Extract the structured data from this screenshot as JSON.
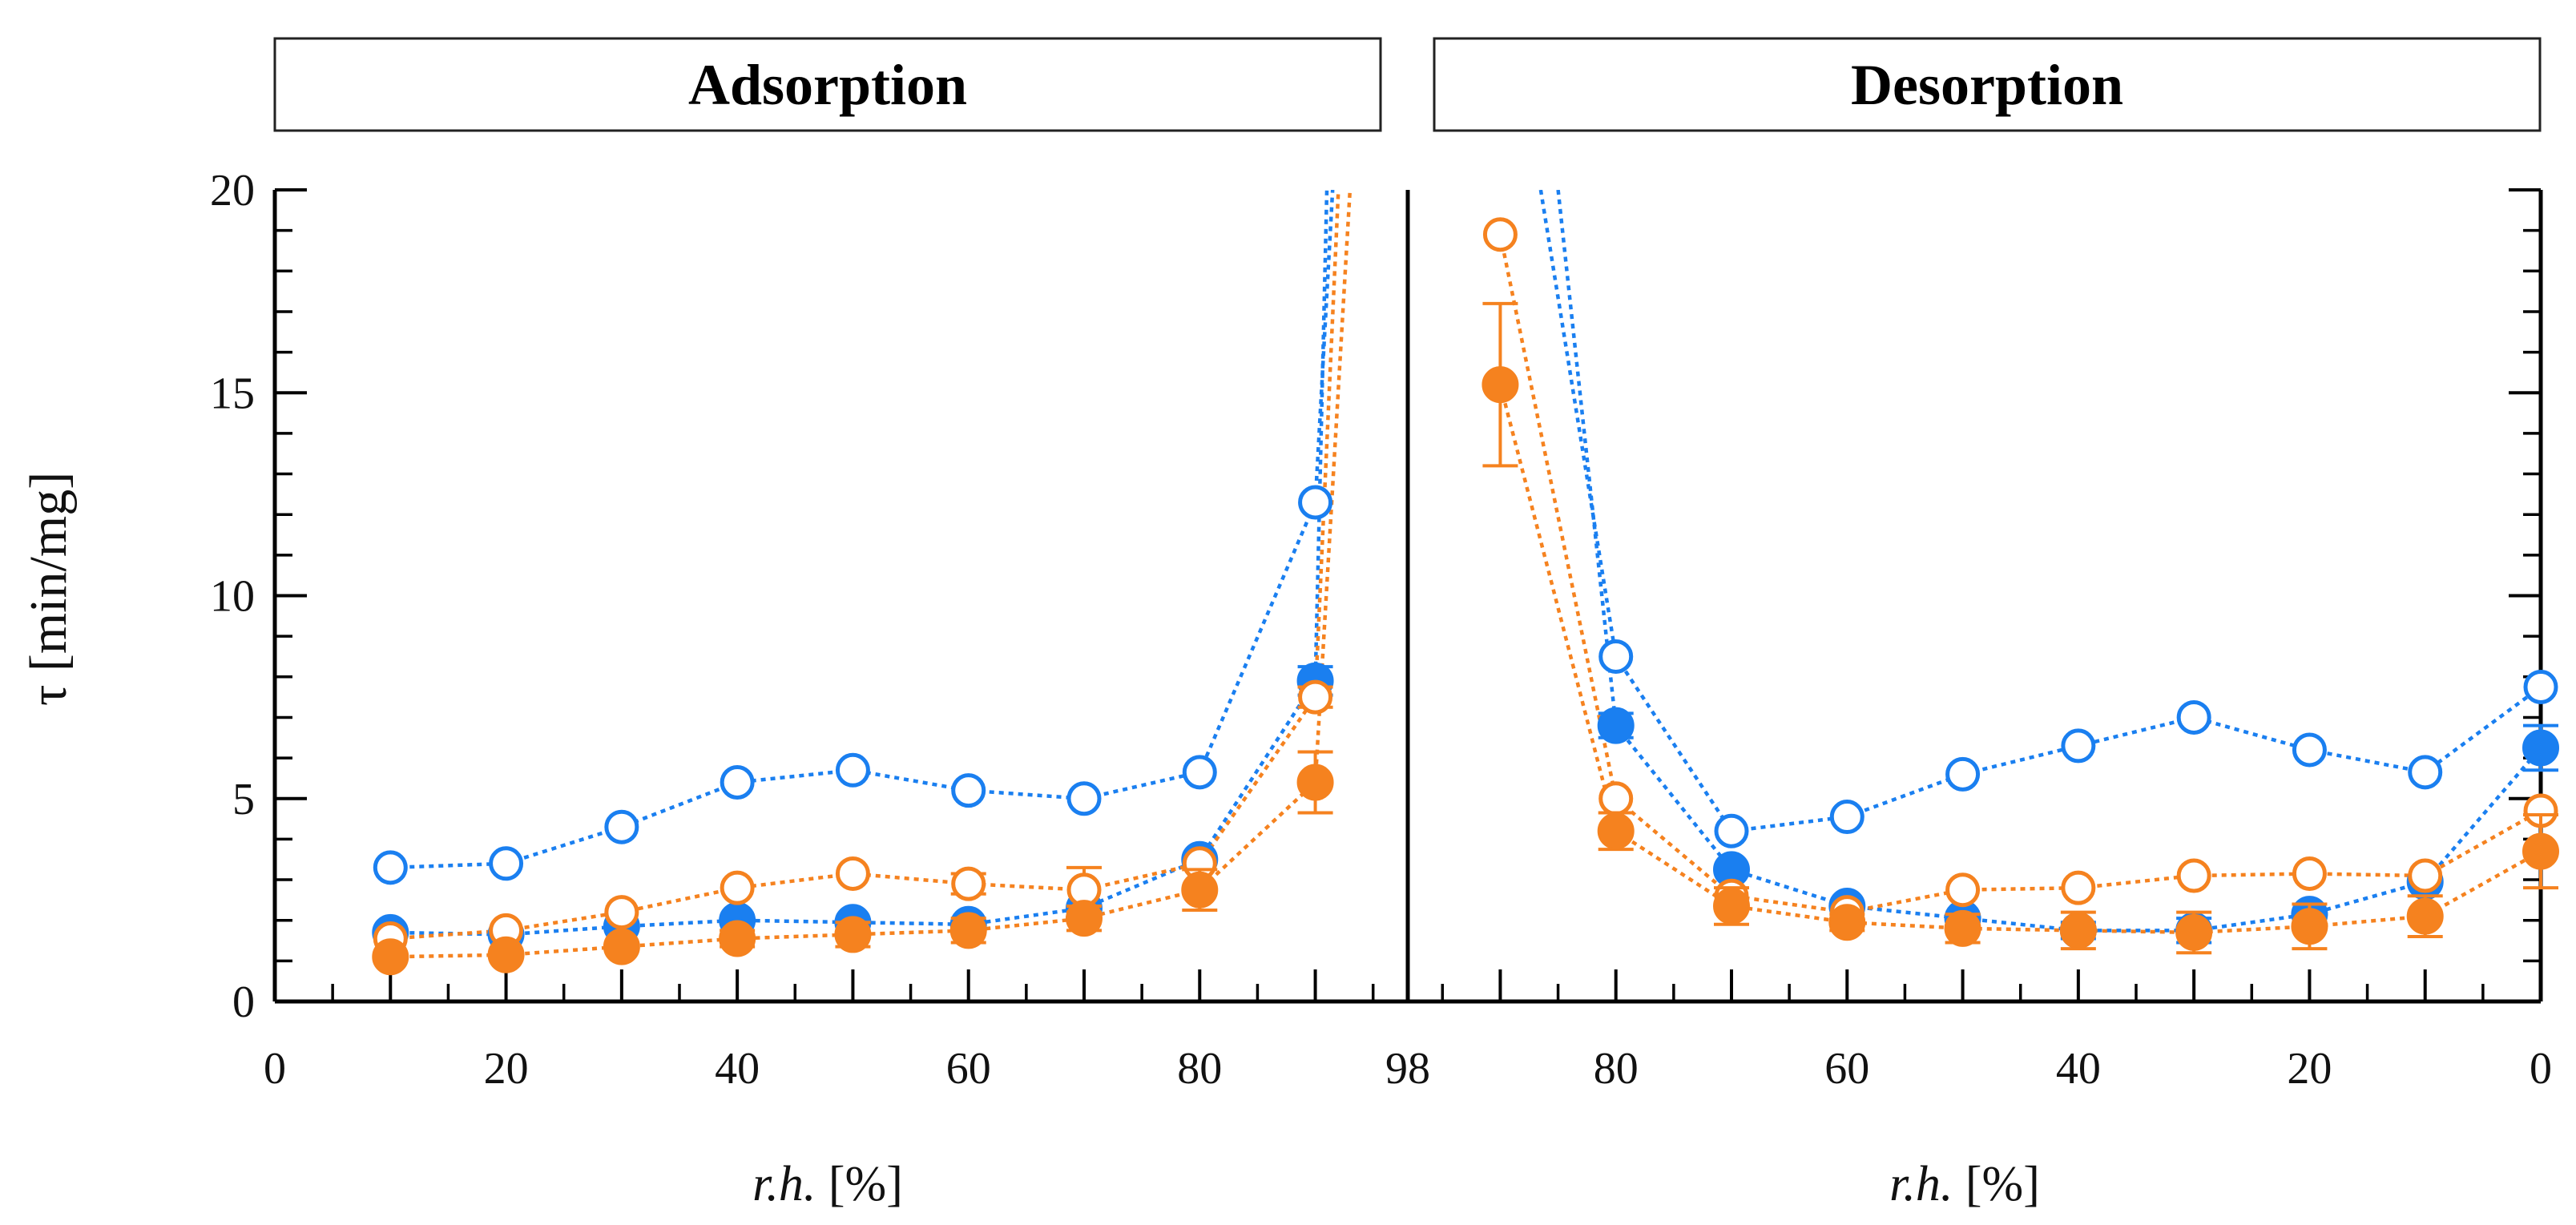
{
  "chart_data": [
    {
      "panel": "Adsorption",
      "type": "line",
      "title": "Adsorption",
      "xlabel_italic": "r.h.",
      "xlabel_unit": "[%]",
      "ylabel": "τ [min/mg]",
      "xlim": [
        0,
        98
      ],
      "ylim": [
        0,
        20
      ],
      "xticks": [
        0,
        20,
        40,
        60,
        80,
        98
      ],
      "yticks": [
        0,
        5,
        10,
        15,
        20
      ],
      "series": [
        {
          "name": "blue-open",
          "color": "#1a7ff0",
          "filled": false,
          "x": [
            10,
            20,
            30,
            40,
            50,
            60,
            70,
            80,
            90,
            91.5
          ],
          "y": [
            3.3,
            3.4,
            4.3,
            5.4,
            5.7,
            5.2,
            5.0,
            5.65,
            12.3,
            20
          ]
        },
        {
          "name": "blue-filled",
          "color": "#1a7ff0",
          "filled": true,
          "x": [
            10,
            20,
            30,
            40,
            50,
            60,
            70,
            80,
            90,
            91
          ],
          "y": [
            1.7,
            1.65,
            1.85,
            2.0,
            1.95,
            1.9,
            2.3,
            3.5,
            7.9,
            20
          ],
          "err": [
            0,
            0,
            0,
            0,
            0,
            0,
            0,
            0,
            0.35,
            0
          ]
        },
        {
          "name": "orange-open",
          "color": "#f5821f",
          "filled": false,
          "x": [
            10,
            20,
            30,
            40,
            50,
            60,
            70,
            80,
            90,
            92
          ],
          "y": [
            1.55,
            1.75,
            2.2,
            2.8,
            3.15,
            2.9,
            2.75,
            3.4,
            7.5,
            20
          ],
          "err": [
            0,
            0,
            0,
            0,
            0,
            0.25,
            0.55,
            0,
            0.25,
            0
          ]
        },
        {
          "name": "orange-filled",
          "color": "#f5821f",
          "filled": true,
          "x": [
            10,
            20,
            30,
            40,
            50,
            60,
            70,
            80,
            90,
            93
          ],
          "y": [
            1.1,
            1.15,
            1.35,
            1.55,
            1.65,
            1.75,
            2.05,
            2.75,
            5.4,
            20
          ],
          "err": [
            0,
            0,
            0,
            0.2,
            0.3,
            0.3,
            0.3,
            0.5,
            0.75,
            0
          ]
        }
      ]
    },
    {
      "panel": "Desorption",
      "type": "line",
      "title": "Desorption",
      "xlabel_italic": "r.h.",
      "xlabel_unit": "[%]",
      "xlim": [
        98,
        0
      ],
      "ylim": [
        0,
        20
      ],
      "xticks": [
        98,
        80,
        60,
        40,
        20,
        0
      ],
      "tick_labels": [
        "98",
        "80",
        "60",
        "40",
        "20",
        "0"
      ],
      "series": [
        {
          "name": "blue-open",
          "color": "#1a7ff0",
          "filled": false,
          "x": [
            86.5,
            80,
            70,
            60,
            50,
            40,
            30,
            20,
            10,
            0
          ],
          "y": [
            20,
            8.5,
            4.2,
            4.55,
            5.6,
            6.3,
            7.0,
            6.2,
            5.65,
            7.75
          ]
        },
        {
          "name": "blue-filled",
          "color": "#1a7ff0",
          "filled": true,
          "x": [
            85,
            80,
            70,
            60,
            50,
            40,
            30,
            20,
            10,
            0
          ],
          "y": [
            20,
            6.8,
            3.25,
            2.35,
            2.05,
            1.75,
            1.75,
            2.15,
            2.95,
            6.25
          ],
          "err": [
            0,
            0.3,
            0,
            0,
            0,
            0.2,
            0.3,
            0,
            0,
            0.55
          ]
        },
        {
          "name": "orange-open",
          "color": "#f5821f",
          "filled": false,
          "x": [
            90,
            80,
            70,
            60,
            50,
            40,
            30,
            20,
            10,
            0
          ],
          "y": [
            18.9,
            5.0,
            2.6,
            2.2,
            2.75,
            2.8,
            3.1,
            3.15,
            3.1,
            4.7
          ]
        },
        {
          "name": "orange-filled",
          "color": "#f5821f",
          "filled": true,
          "x": [
            90,
            80,
            70,
            60,
            50,
            40,
            30,
            20,
            10,
            0
          ],
          "y": [
            15.2,
            4.2,
            2.35,
            1.95,
            1.8,
            1.75,
            1.7,
            1.85,
            2.1,
            3.7
          ],
          "err": [
            2.0,
            0.45,
            0.45,
            0.2,
            0.35,
            0.45,
            0.5,
            0.55,
            0.5,
            0.9
          ]
        }
      ]
    }
  ]
}
